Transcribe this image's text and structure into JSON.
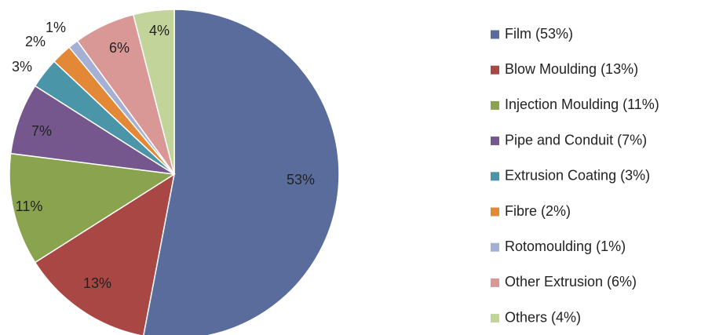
{
  "chart_data": {
    "type": "pie",
    "title": "",
    "legend_position": "right",
    "slices": [
      {
        "name": "Film",
        "value": 53,
        "label": "53%",
        "legend": "Film (53%)",
        "color": "#5a6c9c"
      },
      {
        "name": "Blow Moulding",
        "value": 13,
        "label": "13%",
        "legend": "Blow Moulding (13%)",
        "color": "#a84744"
      },
      {
        "name": "Injection Moulding",
        "value": 11,
        "label": "11%",
        "legend": "Injection Moulding (11%)",
        "color": "#8aa34f"
      },
      {
        "name": "Pipe and Conduit",
        "value": 7,
        "label": "7%",
        "legend": "Pipe and Conduit (7%)",
        "color": "#75578e"
      },
      {
        "name": "Extrusion Coating",
        "value": 3,
        "label": "3%",
        "legend": "Extrusion Coating (3%)",
        "color": "#4a95a8"
      },
      {
        "name": "Fibre",
        "value": 2,
        "label": "2%",
        "legend": "Fibre (2%)",
        "color": "#e38836"
      },
      {
        "name": "Rotomoulding",
        "value": 1,
        "label": "1%",
        "legend": "Rotomoulding (1%)",
        "color": "#a5b1d4"
      },
      {
        "name": "Other Extrusion",
        "value": 6,
        "label": "6%",
        "legend": "Other Extrusion (6%)",
        "color": "#d99795"
      },
      {
        "name": "Others",
        "value": 4,
        "label": "4%",
        "legend": "Others (4%)",
        "color": "#c3d49b"
      }
    ]
  }
}
